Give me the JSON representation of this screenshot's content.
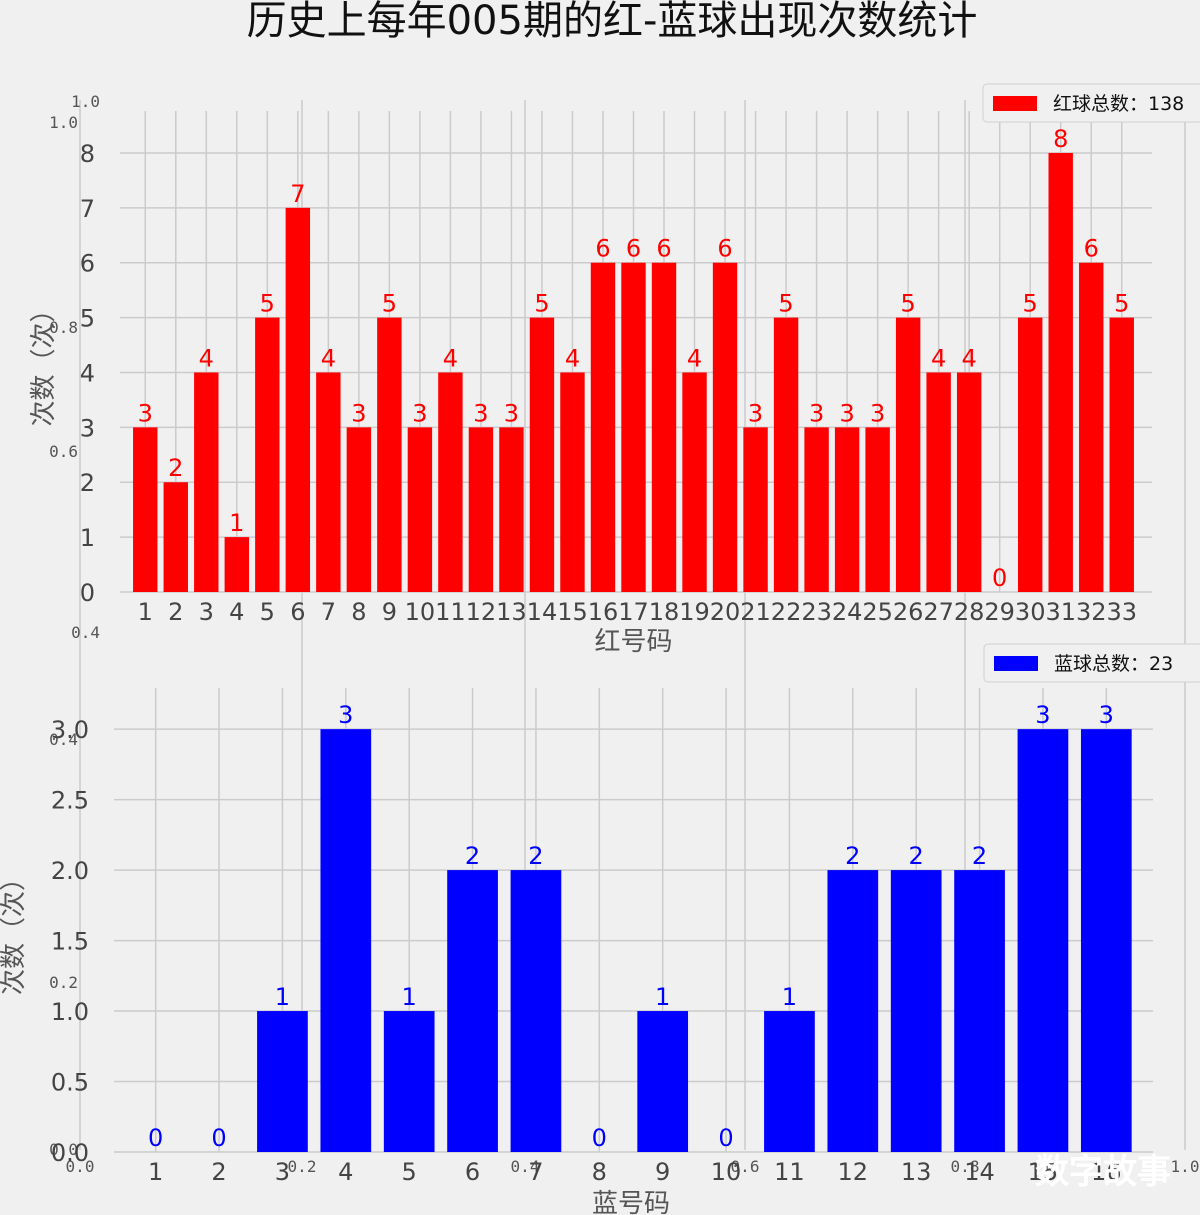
{
  "title": "历史上每年005期的红-蓝球出现次数统计",
  "watermark": "数字故事",
  "colors": {
    "background": "#f0f0f0",
    "grid": "#cbcbcb",
    "red": "#ff0000",
    "blue": "#0000ff"
  },
  "ghost_ticks": {
    "x": [
      "0.0",
      "0.2",
      "0.4",
      "0.6",
      "0.8",
      "1.0"
    ],
    "y": [
      "0.0",
      "0.2",
      "0.4",
      "0.6",
      "0.8",
      "1.0"
    ]
  },
  "chart_data": [
    {
      "type": "bar",
      "categories": [
        "1",
        "2",
        "3",
        "4",
        "5",
        "6",
        "7",
        "8",
        "9",
        "10",
        "11",
        "12",
        "13",
        "14",
        "15",
        "16",
        "17",
        "18",
        "19",
        "20",
        "21",
        "22",
        "23",
        "24",
        "25",
        "26",
        "27",
        "28",
        "29",
        "30",
        "31",
        "32",
        "33"
      ],
      "values": [
        3,
        2,
        4,
        1,
        5,
        7,
        4,
        3,
        5,
        3,
        4,
        3,
        3,
        5,
        4,
        6,
        6,
        6,
        4,
        6,
        3,
        5,
        3,
        3,
        3,
        5,
        4,
        4,
        0,
        5,
        8,
        6,
        5
      ],
      "color": "#ff0000",
      "xlabel": "红号码",
      "ylabel": "次数（次）",
      "ylim": [
        0,
        8.4
      ],
      "yticks": [
        "0",
        "1",
        "2",
        "3",
        "4",
        "5",
        "6",
        "7",
        "8"
      ],
      "legend": "红球总数：138",
      "legend_position": "top-right",
      "grid": true
    },
    {
      "type": "bar",
      "categories": [
        "1",
        "2",
        "3",
        "4",
        "5",
        "6",
        "7",
        "8",
        "9",
        "10",
        "11",
        "12",
        "13",
        "14",
        "15",
        "16"
      ],
      "values": [
        0,
        0,
        1,
        3,
        1,
        2,
        2,
        0,
        1,
        0,
        1,
        2,
        2,
        2,
        3,
        3
      ],
      "color": "#0000ff",
      "xlabel": "蓝号码",
      "ylabel": "次数（次）",
      "ylim": [
        0,
        3.15
      ],
      "yticks": [
        "0.0",
        "0.5",
        "1.0",
        "1.5",
        "2.0",
        "2.5",
        "3.0"
      ],
      "legend": "蓝球总数：23",
      "legend_position": "top-right",
      "grid": true
    }
  ]
}
